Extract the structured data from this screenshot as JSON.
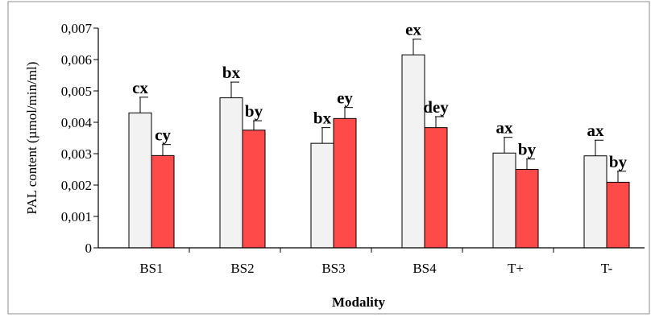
{
  "chart_data": {
    "type": "bar",
    "categories": [
      "BS1",
      "BS2",
      "BS3",
      "BS4",
      "T+",
      "T-"
    ],
    "series": [
      {
        "color": "#f2f2f2",
        "values": [
          0.0043,
          0.00478,
          0.00333,
          0.00615,
          0.00302,
          0.00293
        ],
        "error": [
          0.0005,
          0.0005,
          0.0005,
          0.0005,
          0.0005,
          0.0005
        ],
        "labels": [
          "cx",
          "bx",
          "bx",
          "ex",
          "ax",
          "ax"
        ]
      },
      {
        "color": "#ff4a4a",
        "values": [
          0.00294,
          0.00375,
          0.00412,
          0.00383,
          0.0025,
          0.00209
        ],
        "error": [
          0.00035,
          0.0003,
          0.00035,
          0.00035,
          0.00033,
          0.00035
        ],
        "labels": [
          "cy",
          "by",
          "ey",
          "dey",
          "by",
          "by"
        ]
      }
    ],
    "yticks": [
      "0",
      "0,001",
      "0,002",
      "0,003",
      "0,004",
      "0,005",
      "0,006",
      "0,007"
    ],
    "ylim": [
      0,
      0.007
    ],
    "xlabel": "Modality",
    "ylabel": "PAL content (µmol/min/ml)",
    "grid": false,
    "legend": "none"
  }
}
